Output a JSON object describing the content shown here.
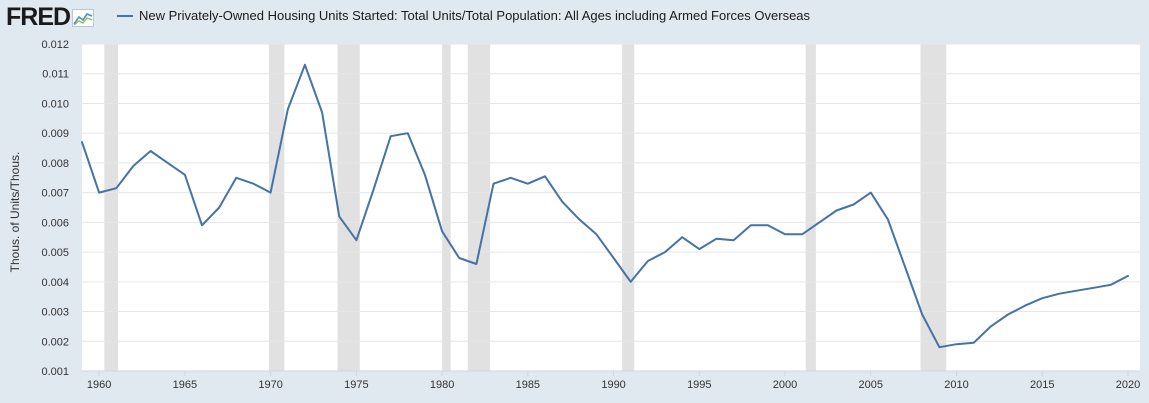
{
  "header": {
    "logo_text": "FRED",
    "legend_label": "New Privately-Owned Housing Units Started: Total Units/Total Population: All Ages including Armed Forces Overseas"
  },
  "colors": {
    "line": "#4572a7",
    "recession": "#e1e1e1",
    "background": "#e1e9f0",
    "plot_bg": "#ffffff",
    "grid": "#e6e6e6"
  },
  "chart_data": {
    "type": "line",
    "title": "New Privately-Owned Housing Units Started: Total Units/Total Population: All Ages including Armed Forces Overseas",
    "xlabel": "",
    "ylabel": "Thous. of Units/Thous.",
    "xlim": [
      1959,
      2020.7
    ],
    "ylim": [
      0.001,
      0.012
    ],
    "yticks": [
      0.001,
      0.002,
      0.003,
      0.004,
      0.005,
      0.006,
      0.007,
      0.008,
      0.009,
      0.01,
      0.011,
      0.012
    ],
    "ytick_labels": [
      "0.001",
      "0.002",
      "0.003",
      "0.004",
      "0.005",
      "0.006",
      "0.007",
      "0.008",
      "0.009",
      "0.010",
      "0.011",
      "0.012"
    ],
    "xticks": [
      1960,
      1965,
      1970,
      1975,
      1980,
      1985,
      1990,
      1995,
      2000,
      2005,
      2010,
      2015,
      2020
    ],
    "xtick_labels": [
      "1960",
      "1965",
      "1970",
      "1975",
      "1980",
      "1985",
      "1990",
      "1995",
      "2000",
      "2005",
      "2010",
      "2015",
      "2020"
    ],
    "recessions": [
      [
        1960.3,
        1961.1
      ],
      [
        1969.9,
        1970.8
      ],
      [
        1973.9,
        1975.2
      ],
      [
        1980.0,
        1980.5
      ],
      [
        1981.5,
        1982.8
      ],
      [
        1990.5,
        1991.2
      ],
      [
        2001.2,
        2001.8
      ],
      [
        2007.9,
        2009.4
      ]
    ],
    "series": [
      {
        "name": "New Privately-Owned Housing Units Started: Total Units/Total Population: All Ages including Armed Forces Overseas",
        "x": [
          1959,
          1960,
          1961,
          1962,
          1963,
          1964,
          1965,
          1966,
          1967,
          1968,
          1969,
          1970,
          1971,
          1972,
          1973,
          1974,
          1975,
          1976,
          1977,
          1978,
          1979,
          1980,
          1981,
          1982,
          1983,
          1984,
          1985,
          1986,
          1987,
          1988,
          1989,
          1990,
          1991,
          1992,
          1993,
          1994,
          1995,
          1996,
          1997,
          1998,
          1999,
          2000,
          2001,
          2002,
          2003,
          2004,
          2005,
          2006,
          2007,
          2008,
          2009,
          2010,
          2011,
          2012,
          2013,
          2014,
          2015,
          2016,
          2017,
          2018,
          2019,
          2020
        ],
        "values": [
          0.0087,
          0.007,
          0.00715,
          0.0079,
          0.0084,
          0.008,
          0.0076,
          0.0059,
          0.0065,
          0.0075,
          0.0073,
          0.007,
          0.0098,
          0.0113,
          0.0097,
          0.0062,
          0.0054,
          0.0071,
          0.0089,
          0.009,
          0.0076,
          0.0057,
          0.0048,
          0.0046,
          0.0073,
          0.0075,
          0.0073,
          0.00755,
          0.0067,
          0.0061,
          0.0056,
          0.0048,
          0.004,
          0.0047,
          0.005,
          0.0055,
          0.0051,
          0.00545,
          0.0054,
          0.0059,
          0.0059,
          0.0056,
          0.0056,
          0.006,
          0.0064,
          0.0066,
          0.007,
          0.0061,
          0.0045,
          0.0029,
          0.0018,
          0.0019,
          0.00195,
          0.0025,
          0.0029,
          0.0032,
          0.00345,
          0.0036,
          0.0037,
          0.0038,
          0.0039,
          0.0042
        ]
      }
    ]
  }
}
